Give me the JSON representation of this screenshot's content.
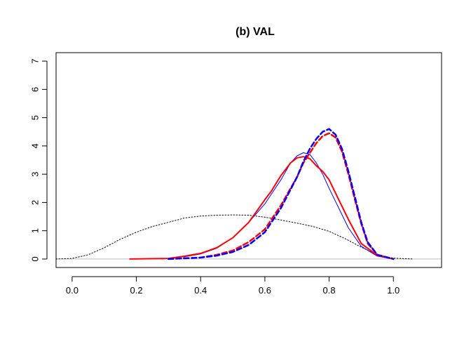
{
  "chart_data": {
    "type": "line",
    "title": "(b) VAL",
    "xlabel": "",
    "ylabel": "",
    "xlim": [
      -0.05,
      1.15
    ],
    "ylim": [
      -0.3,
      7.3
    ],
    "x_ticks": [
      "0.0",
      "0.2",
      "0.4",
      "0.6",
      "0.8",
      "1.0"
    ],
    "y_ticks": [
      "0",
      "1",
      "2",
      "3",
      "4",
      "5",
      "6",
      "7"
    ],
    "reference_line": {
      "y": 0,
      "color": "#bebebe"
    },
    "series": [
      {
        "style": "dotted",
        "color": "#000000",
        "width": 1,
        "x": [
          -0.05,
          0.0,
          0.05,
          0.1,
          0.15,
          0.2,
          0.25,
          0.3,
          0.35,
          0.4,
          0.45,
          0.5,
          0.55,
          0.6,
          0.65,
          0.7,
          0.75,
          0.8,
          0.85,
          0.9,
          0.95,
          1.0,
          1.06
        ],
        "y": [
          0.0,
          0.02,
          0.15,
          0.4,
          0.7,
          0.95,
          1.15,
          1.3,
          1.45,
          1.52,
          1.55,
          1.56,
          1.55,
          1.48,
          1.38,
          1.27,
          1.15,
          0.98,
          0.72,
          0.42,
          0.15,
          0.03,
          0.0
        ]
      },
      {
        "style": "solid",
        "color": "#0000ff",
        "width": 1,
        "x": [
          0.28,
          0.35,
          0.4,
          0.45,
          0.5,
          0.55,
          0.6,
          0.65,
          0.68,
          0.7,
          0.72,
          0.74,
          0.76,
          0.78,
          0.8,
          0.83,
          0.86,
          0.9,
          0.95,
          1.0
        ],
        "y": [
          0.0,
          0.08,
          0.18,
          0.38,
          0.75,
          1.3,
          1.95,
          2.8,
          3.4,
          3.65,
          3.76,
          3.7,
          3.4,
          3.0,
          2.5,
          1.8,
          1.1,
          0.45,
          0.1,
          0.0
        ]
      },
      {
        "style": "solid",
        "color": "#ff0000",
        "width": 2,
        "x": [
          0.18,
          0.3,
          0.35,
          0.4,
          0.45,
          0.5,
          0.55,
          0.6,
          0.62,
          0.65,
          0.68,
          0.7,
          0.72,
          0.74,
          0.76,
          0.78,
          0.8,
          0.83,
          0.86,
          0.9,
          0.95,
          1.0
        ],
        "y": [
          0.0,
          0.02,
          0.1,
          0.2,
          0.4,
          0.75,
          1.3,
          2.1,
          2.4,
          2.95,
          3.4,
          3.58,
          3.62,
          3.55,
          3.3,
          3.1,
          2.8,
          2.1,
          1.4,
          0.55,
          0.12,
          0.0
        ]
      },
      {
        "style": "dashed",
        "color": "#ff0000",
        "width": 2.5,
        "x": [
          0.3,
          0.4,
          0.45,
          0.5,
          0.55,
          0.6,
          0.65,
          0.7,
          0.72,
          0.74,
          0.76,
          0.78,
          0.8,
          0.82,
          0.84,
          0.86,
          0.88,
          0.9,
          0.92,
          0.95,
          1.0
        ],
        "y": [
          0.0,
          0.05,
          0.15,
          0.3,
          0.6,
          1.05,
          1.9,
          2.9,
          3.4,
          3.75,
          4.1,
          4.35,
          4.45,
          4.3,
          3.8,
          3.0,
          2.1,
          1.25,
          0.55,
          0.15,
          0.0
        ]
      },
      {
        "style": "dashed",
        "color": "#0000ff",
        "width": 2.5,
        "x": [
          0.3,
          0.4,
          0.45,
          0.5,
          0.55,
          0.6,
          0.65,
          0.7,
          0.72,
          0.74,
          0.76,
          0.78,
          0.8,
          0.82,
          0.84,
          0.86,
          0.88,
          0.9,
          0.92,
          0.95,
          1.0
        ],
        "y": [
          0.0,
          0.05,
          0.12,
          0.25,
          0.5,
          0.95,
          1.8,
          2.9,
          3.45,
          3.9,
          4.25,
          4.5,
          4.6,
          4.4,
          3.9,
          3.1,
          2.2,
          1.3,
          0.6,
          0.15,
          0.0
        ]
      }
    ]
  }
}
